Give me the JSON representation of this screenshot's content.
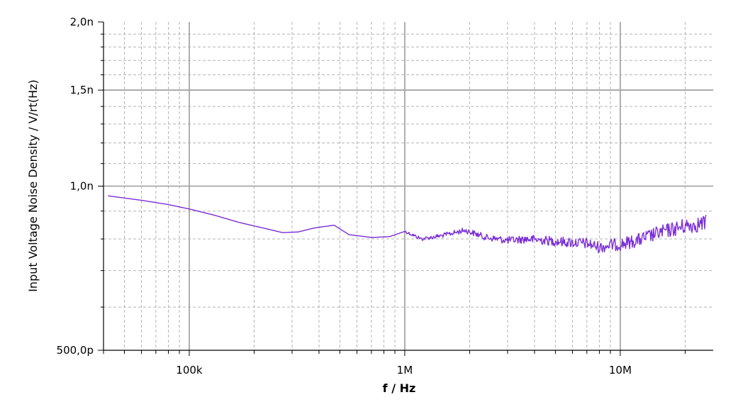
{
  "chart_data": {
    "type": "line",
    "title": "",
    "xlabel": "f / Hz",
    "ylabel": "Input Voltage Noise Density / V/rt(Hz)",
    "x_scale": "log",
    "y_scale": "log",
    "xlim": [
      40000,
      27000000
    ],
    "ylim": [
      5e-10,
      2e-09
    ],
    "grid": true,
    "legend": "none",
    "x_ticks": [
      {
        "value": 100000,
        "label": "100k"
      },
      {
        "value": 1000000,
        "label": "1M"
      },
      {
        "value": 10000000,
        "label": "10M"
      }
    ],
    "y_ticks": [
      {
        "value": 5e-10,
        "label": "500,0p"
      },
      {
        "value": 1e-09,
        "label": "1,0n"
      },
      {
        "value": 1.5e-09,
        "label": "1,5n"
      },
      {
        "value": 2e-09,
        "label": "2,0n"
      }
    ],
    "series": [
      {
        "color": "#7b2ed6",
        "x": [
          42000,
          60000,
          80000,
          100000,
          130000,
          170000,
          220000,
          270000,
          320000,
          380000,
          470000,
          550000,
          700000,
          850000,
          1000000,
          1200000,
          1500000,
          1900000,
          2400000,
          3000000,
          3700000,
          4500000,
          5500000,
          7000000,
          8000000,
          9000000,
          10000000,
          12000000,
          15000000,
          20000000,
          25000000
        ],
        "y": [
          9.6e-10,
          9.42e-10,
          9.25e-10,
          9.08e-10,
          8.85e-10,
          8.58e-10,
          8.38e-10,
          8.22e-10,
          8.24e-10,
          8.38e-10,
          8.48e-10,
          8.15e-10,
          8.05e-10,
          8.08e-10,
          8.26e-10,
          8e-10,
          8.12e-10,
          8.3e-10,
          8.05e-10,
          7.95e-10,
          8e-10,
          7.95e-10,
          7.9e-10,
          7.85e-10,
          7.72e-10,
          7.8e-10,
          7.82e-10,
          7.95e-10,
          8.2e-10,
          8.45e-10,
          8.55e-10
        ],
        "noise_start_hz": 1000000
      }
    ]
  },
  "colors": {
    "line": "#7b2ed6",
    "major_grid": "#a6a6a6",
    "minor_grid": "#b4b4b4",
    "axis": "#000000"
  }
}
